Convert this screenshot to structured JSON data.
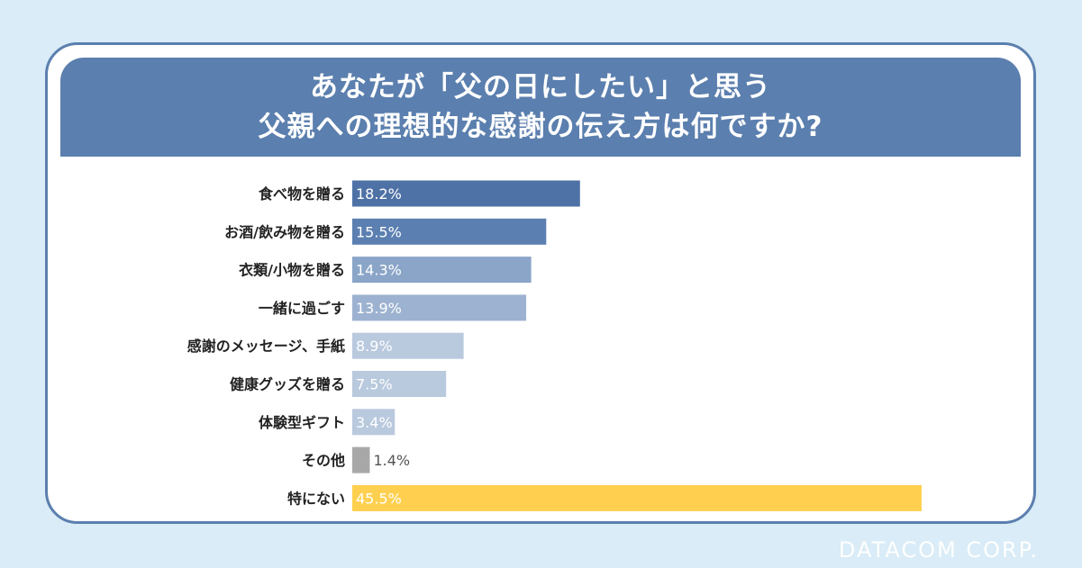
{
  "chart_data": {
    "type": "bar",
    "orientation": "horizontal",
    "title_lines": [
      "あなたが「父の日にしたい」と思う",
      "父親への理想的な感謝の伝え方は何ですか?"
    ],
    "categories": [
      "食べ物を贈る",
      "お酒/飲み物を贈る",
      "衣類/小物を贈る",
      "一緒に過ごす",
      "感謝のメッセージ、手紙",
      "健康グッズを贈る",
      "体験型ギフト",
      "その他",
      "特にない"
    ],
    "values": [
      18.2,
      15.5,
      14.3,
      13.9,
      8.9,
      7.5,
      3.4,
      1.4,
      45.5
    ],
    "value_labels": [
      "18.2%",
      "15.5%",
      "14.3%",
      "13.9%",
      "8.9%",
      "7.5%",
      "3.4%",
      "1.4%",
      "45.5%"
    ],
    "unit": "%",
    "xlim": [
      0,
      45.5
    ],
    "grid": false,
    "legend": "none",
    "colors": [
      "#4f72a6",
      "#5b7fb1",
      "#8aa5c8",
      "#9cb2d0",
      "#b9c9de",
      "#b9c9de",
      "#b9c9de",
      "#a8a8a8",
      "#ffd04f"
    ]
  },
  "brand": "DATACOM CORP."
}
